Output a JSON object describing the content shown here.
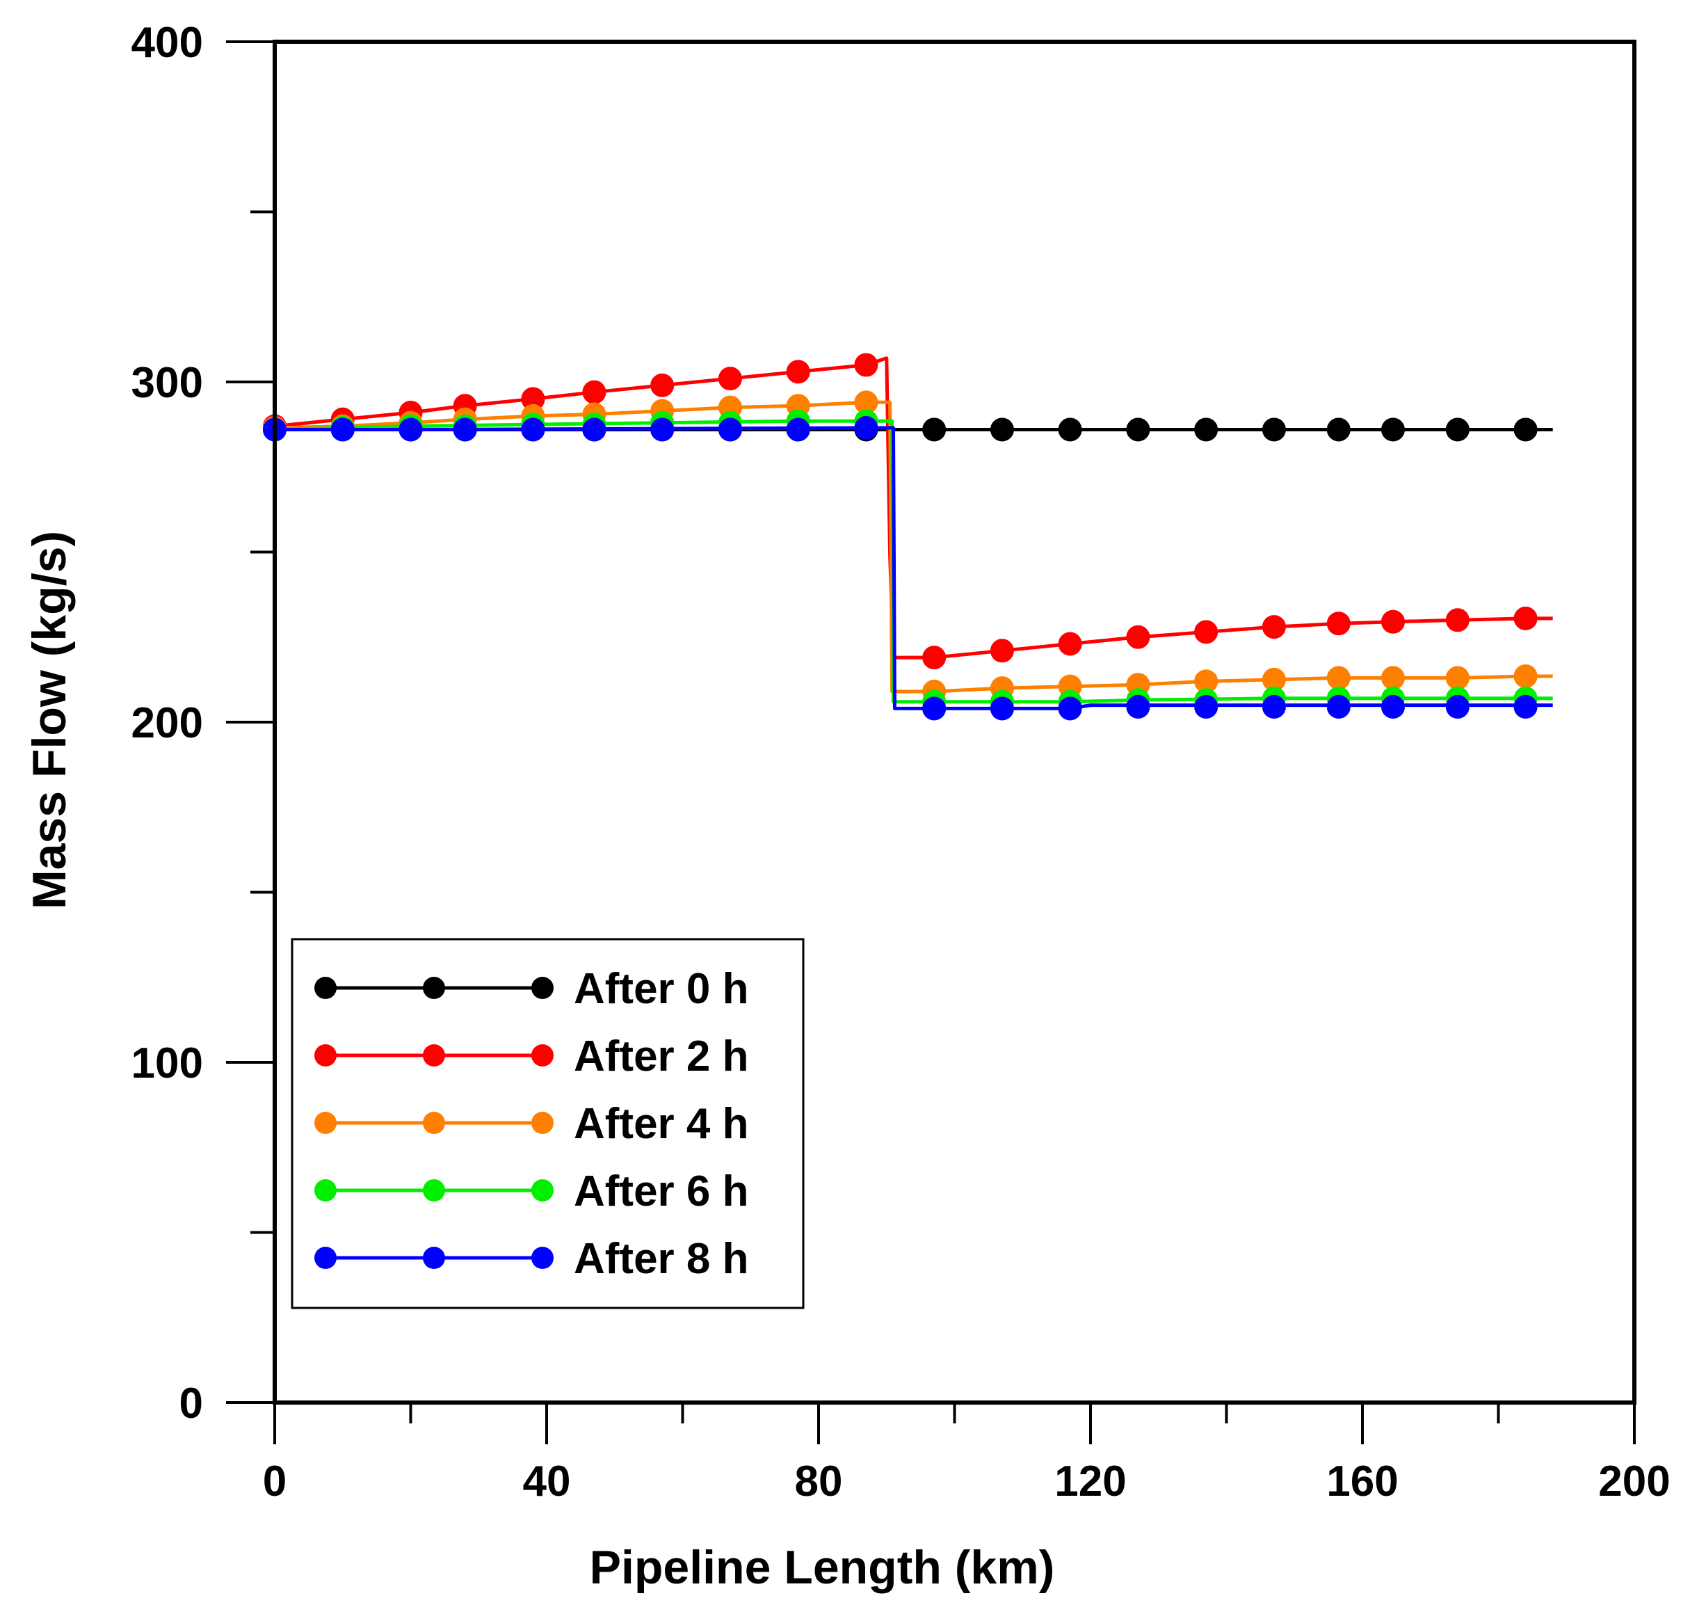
{
  "chart_data": {
    "type": "line",
    "title": "",
    "xlabel": "Pipeline Length (km)",
    "ylabel": "Mass Flow (kg/s)",
    "xlim": [
      0,
      200
    ],
    "ylim": [
      0,
      400
    ],
    "xticks": [
      0,
      40,
      80,
      120,
      160,
      200
    ],
    "yticks": [
      0,
      100,
      200,
      300,
      400
    ],
    "xtick_labels": [
      "0",
      "40",
      "80",
      "120",
      "160",
      "200"
    ],
    "ytick_labels": [
      "0",
      "100",
      "200",
      "300",
      "400"
    ],
    "x_minor_step": 20,
    "y_minor_step": 50,
    "grid": false,
    "legend_position": "bottom-left",
    "series": [
      {
        "name": "After 0 h",
        "color": "#000000",
        "line": [
          [
            0,
            286
          ],
          [
            90.5,
            286
          ],
          [
            188,
            286
          ]
        ],
        "markers_x": [
          0,
          10,
          20,
          28,
          38,
          47,
          57,
          67,
          77,
          87,
          97,
          107,
          117,
          127,
          137,
          147,
          156.5,
          164.5,
          174,
          184
        ],
        "markers_y": [
          286,
          286,
          286,
          286,
          286,
          286,
          286,
          286,
          286,
          286,
          286,
          286,
          286,
          286,
          286,
          286,
          286,
          286,
          286,
          286
        ]
      },
      {
        "name": "After 2 h",
        "color": "#ff0000",
        "line": [
          [
            0,
            287
          ],
          [
            10,
            289
          ],
          [
            20,
            291
          ],
          [
            28,
            293
          ],
          [
            38,
            295
          ],
          [
            47,
            297
          ],
          [
            57,
            299
          ],
          [
            67,
            301
          ],
          [
            77,
            303
          ],
          [
            87,
            305
          ],
          [
            90,
            307
          ],
          [
            90.5,
            249
          ],
          [
            91,
            219
          ],
          [
            97,
            219
          ],
          [
            107,
            221
          ],
          [
            117,
            223
          ],
          [
            127,
            225
          ],
          [
            137,
            226.5
          ],
          [
            147,
            228
          ],
          [
            156.5,
            229
          ],
          [
            164.5,
            229.5
          ],
          [
            174,
            230
          ],
          [
            184,
            230.5
          ],
          [
            188,
            230.5
          ]
        ],
        "markers_x": [
          0,
          10,
          20,
          28,
          38,
          47,
          57,
          67,
          77,
          87,
          97,
          107,
          117,
          127,
          137,
          147,
          156.5,
          164.5,
          174,
          184
        ],
        "markers_y": [
          287,
          289,
          291,
          293,
          295,
          297,
          299,
          301,
          303,
          305,
          219,
          221,
          223,
          225,
          226.5,
          228,
          229,
          229.5,
          230,
          230.5
        ]
      },
      {
        "name": "After 4 h",
        "color": "#ff7f00",
        "line": [
          [
            0,
            286.5
          ],
          [
            10,
            287
          ],
          [
            20,
            288
          ],
          [
            28,
            289
          ],
          [
            38,
            290
          ],
          [
            47,
            290.5
          ],
          [
            57,
            291.5
          ],
          [
            67,
            292.5
          ],
          [
            77,
            293
          ],
          [
            87,
            294
          ],
          [
            90.5,
            294
          ],
          [
            90.8,
            209
          ],
          [
            97,
            209
          ],
          [
            107,
            210
          ],
          [
            117,
            210.5
          ],
          [
            127,
            211
          ],
          [
            137,
            212
          ],
          [
            147,
            212.5
          ],
          [
            156.5,
            213
          ],
          [
            164.5,
            213
          ],
          [
            174,
            213
          ],
          [
            184,
            213.5
          ],
          [
            188,
            213.5
          ]
        ],
        "markers_x": [
          0,
          10,
          20,
          28,
          38,
          47,
          57,
          67,
          77,
          87,
          97,
          107,
          117,
          127,
          137,
          147,
          156.5,
          164.5,
          174,
          184
        ],
        "markers_y": [
          286.5,
          287,
          288,
          289,
          290,
          290.5,
          291.5,
          292.5,
          293,
          294,
          209,
          210,
          210.5,
          211,
          212,
          212.5,
          213,
          213,
          213,
          213.5
        ]
      },
      {
        "name": "After 6 h",
        "color": "#00ee00",
        "line": [
          [
            0,
            286
          ],
          [
            20,
            287
          ],
          [
            38,
            287.5
          ],
          [
            57,
            288
          ],
          [
            77,
            288.5
          ],
          [
            87,
            288.5
          ],
          [
            90.8,
            288.5
          ],
          [
            91,
            206
          ],
          [
            117,
            206
          ],
          [
            127,
            206.5
          ],
          [
            147,
            207
          ],
          [
            188,
            207
          ]
        ],
        "markers_x": [
          0,
          10,
          20,
          28,
          38,
          47,
          57,
          67,
          77,
          87,
          97,
          107,
          117,
          127,
          137,
          147,
          156.5,
          164.5,
          174,
          184
        ],
        "markers_y": [
          286,
          286.5,
          287,
          287,
          287.5,
          287.5,
          288,
          288,
          288.5,
          288.5,
          206,
          206,
          206,
          206.5,
          206.5,
          207,
          207,
          207,
          207,
          207
        ]
      },
      {
        "name": "After 8 h",
        "color": "#0000ff",
        "line": [
          [
            0,
            286
          ],
          [
            20,
            286
          ],
          [
            87,
            286.5
          ],
          [
            91,
            286.5
          ],
          [
            91.2,
            204
          ],
          [
            117,
            204
          ],
          [
            120,
            205
          ],
          [
            188,
            205
          ]
        ],
        "markers_x": [
          0,
          10,
          20,
          28,
          38,
          47,
          57,
          67,
          77,
          87,
          97,
          107,
          117,
          127,
          137,
          147,
          156.5,
          164.5,
          174,
          184
        ],
        "markers_y": [
          286,
          286,
          286,
          286,
          286,
          286,
          286,
          286,
          286,
          286.5,
          204,
          204,
          204,
          204.5,
          204.5,
          204.5,
          204.5,
          204.5,
          204.5,
          204.5
        ]
      }
    ]
  }
}
